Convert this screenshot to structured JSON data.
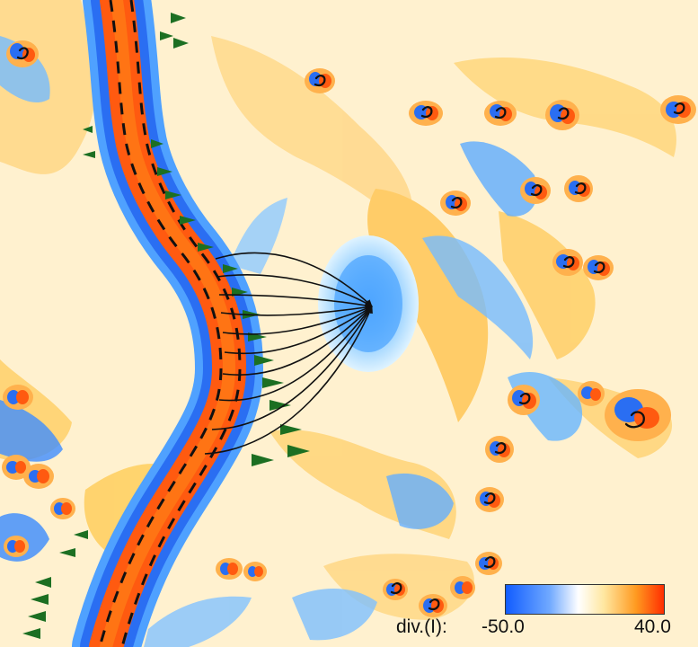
{
  "figure": {
    "description_colors": {
      "negative_strong": "#0f53ff",
      "negative_mid": "#2d8cf5",
      "negative_light": "#c8ebff",
      "neutral": "#fff2d5",
      "positive_light": "#ffd070",
      "positive_strong": "#ff5a10",
      "arrow_green": "#1c6f22",
      "dashes": "#111111"
    }
  },
  "legend": {
    "title": "div.(I):",
    "min": "-50.0",
    "max": "40.0",
    "gradient": [
      "#0f5bff",
      "#70a9ff",
      "#ffffff",
      "#ffe7a0",
      "#ff9a20",
      "#ff2b00"
    ]
  }
}
